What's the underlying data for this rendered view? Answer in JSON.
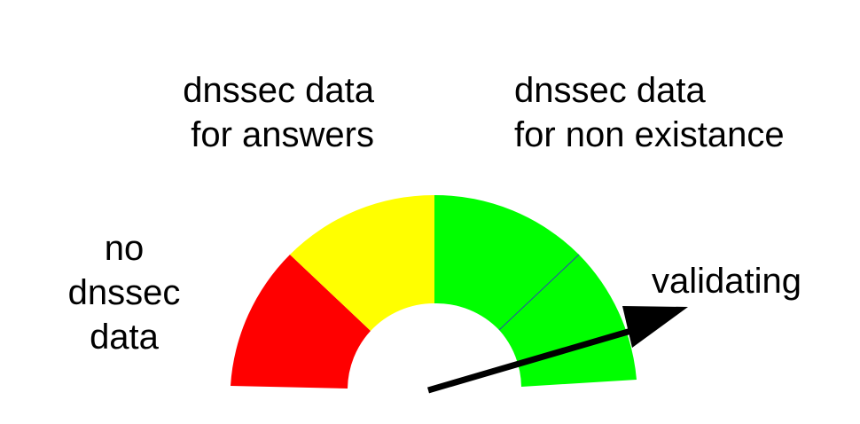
{
  "labels": {
    "answers": {
      "line1": "dnssec data",
      "line2": "for answers"
    },
    "nonexistence": {
      "line1": "dnssec data",
      "line2": "for non existance"
    },
    "no_data": {
      "line1": "no",
      "line2": "dnssec",
      "line3": "data"
    },
    "validating": "validating"
  },
  "gauge": {
    "segments": [
      {
        "name": "no-dnssec-data",
        "color": "#ff0000"
      },
      {
        "name": "dnssec-data-for-answers",
        "color": "#ffff00"
      },
      {
        "name": "dnssec-data-for-non-existance",
        "color": "#00ff00"
      },
      {
        "name": "validating",
        "color": "#00ff00"
      }
    ],
    "needle_color": "#000000",
    "divider_color": "#2a4ea8"
  }
}
